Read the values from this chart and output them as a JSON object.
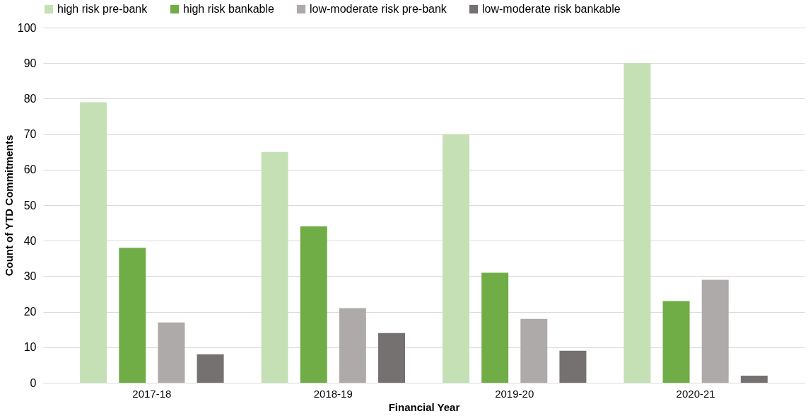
{
  "chart_data": {
    "type": "bar",
    "xlabel": "Financial  Year",
    "ylabel": "Count of YTD Commitments",
    "categories": [
      "2017-18",
      "2018-19",
      "2019-20",
      "2020-21"
    ],
    "series": [
      {
        "name": "high risk pre-bank",
        "color": "#c5e0b4",
        "values": [
          79,
          65,
          70,
          90
        ]
      },
      {
        "name": "high risk bankable",
        "color": "#70ad47",
        "values": [
          38,
          44,
          31,
          23
        ]
      },
      {
        "name": "low-moderate risk pre-bank",
        "color": "#aeaaaa",
        "values": [
          17,
          21,
          18,
          29
        ]
      },
      {
        "name": "low-moderate risk bankable",
        "color": "#767171",
        "values": [
          8,
          14,
          9,
          2
        ]
      }
    ],
    "ylim": [
      0,
      100
    ],
    "yticks": [
      0,
      10,
      20,
      30,
      40,
      50,
      60,
      70,
      80,
      90,
      100
    ],
    "grid": "y",
    "legend": "top"
  }
}
